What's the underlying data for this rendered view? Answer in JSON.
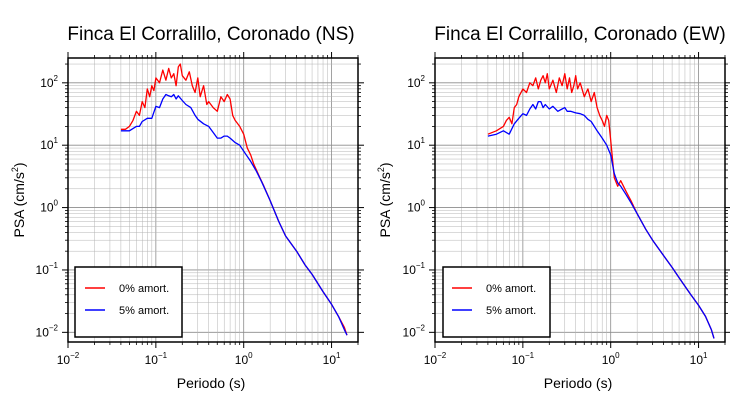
{
  "chart_data": [
    {
      "type": "line",
      "title": "Finca El Corralillo, Coronado (NS)",
      "xlabel": "Periodo (s)",
      "ylabel_main": "PSA (cm/s",
      "ylabel_sup": "2",
      "ylabel_close": ")",
      "xscale": "log",
      "yscale": "log",
      "xlim": [
        0.01,
        20
      ],
      "ylim": [
        0.007,
        250
      ],
      "grid": true,
      "legend_position": "bottom-left",
      "x_ticks": [
        {
          "value": 0.01,
          "base": "10",
          "exp": "−2"
        },
        {
          "value": 0.1,
          "base": "10",
          "exp": "−1"
        },
        {
          "value": 1,
          "base": "10",
          "exp": "0"
        },
        {
          "value": 10,
          "base": "10",
          "exp": "1"
        }
      ],
      "y_ticks": [
        {
          "value": 0.01,
          "base": "10",
          "exp": "−2"
        },
        {
          "value": 0.1,
          "base": "10",
          "exp": "−1"
        },
        {
          "value": 1,
          "base": "10",
          "exp": "0"
        },
        {
          "value": 10,
          "base": "10",
          "exp": "1"
        },
        {
          "value": 100,
          "base": "10",
          "exp": "2"
        }
      ],
      "series": [
        {
          "name": "0% amort.",
          "color": "#ff0000",
          "points": [
            [
              0.04,
              18
            ],
            [
              0.045,
              18
            ],
            [
              0.05,
              20
            ],
            [
              0.055,
              25
            ],
            [
              0.06,
              35
            ],
            [
              0.065,
              30
            ],
            [
              0.07,
              50
            ],
            [
              0.075,
              40
            ],
            [
              0.08,
              80
            ],
            [
              0.085,
              60
            ],
            [
              0.09,
              90
            ],
            [
              0.095,
              75
            ],
            [
              0.1,
              120
            ],
            [
              0.11,
              100
            ],
            [
              0.12,
              160
            ],
            [
              0.13,
              110
            ],
            [
              0.14,
              170
            ],
            [
              0.15,
              120
            ],
            [
              0.16,
              140
            ],
            [
              0.17,
              90
            ],
            [
              0.18,
              180
            ],
            [
              0.19,
              200
            ],
            [
              0.2,
              130
            ],
            [
              0.22,
              110
            ],
            [
              0.24,
              150
            ],
            [
              0.26,
              90
            ],
            [
              0.28,
              70
            ],
            [
              0.3,
              120
            ],
            [
              0.32,
              60
            ],
            [
              0.35,
              90
            ],
            [
              0.38,
              45
            ],
            [
              0.4,
              50
            ],
            [
              0.45,
              40
            ],
            [
              0.5,
              35
            ],
            [
              0.55,
              60
            ],
            [
              0.6,
              50
            ],
            [
              0.65,
              65
            ],
            [
              0.7,
              55
            ],
            [
              0.75,
              30
            ],
            [
              0.8,
              25
            ],
            [
              0.9,
              20
            ],
            [
              1.0,
              15
            ],
            [
              1.1,
              9
            ],
            [
              1.2,
              7
            ],
            [
              1.3,
              5
            ],
            [
              1.5,
              3.2
            ],
            [
              1.7,
              2.2
            ],
            [
              2.0,
              1.3
            ],
            [
              2.5,
              0.6
            ],
            [
              3.0,
              0.35
            ],
            [
              4.0,
              0.2
            ],
            [
              5.0,
              0.12
            ],
            [
              6.0,
              0.085
            ],
            [
              8.0,
              0.045
            ],
            [
              10.0,
              0.028
            ],
            [
              12.0,
              0.018
            ],
            [
              14.0,
              0.012
            ],
            [
              15.0,
              0.009
            ]
          ]
        },
        {
          "name": "5% amort.",
          "color": "#0000ff",
          "points": [
            [
              0.04,
              17
            ],
            [
              0.05,
              17
            ],
            [
              0.06,
              20
            ],
            [
              0.065,
              20
            ],
            [
              0.07,
              24
            ],
            [
              0.08,
              27
            ],
            [
              0.09,
              27
            ],
            [
              0.1,
              42
            ],
            [
              0.11,
              40
            ],
            [
              0.12,
              55
            ],
            [
              0.13,
              65
            ],
            [
              0.14,
              62
            ],
            [
              0.15,
              60
            ],
            [
              0.16,
              65
            ],
            [
              0.17,
              55
            ],
            [
              0.18,
              62
            ],
            [
              0.2,
              52
            ],
            [
              0.22,
              45
            ],
            [
              0.25,
              40
            ],
            [
              0.28,
              30
            ],
            [
              0.3,
              26
            ],
            [
              0.35,
              22
            ],
            [
              0.4,
              20
            ],
            [
              0.45,
              16
            ],
            [
              0.5,
              13
            ],
            [
              0.55,
              13
            ],
            [
              0.6,
              14
            ],
            [
              0.65,
              14
            ],
            [
              0.7,
              13
            ],
            [
              0.8,
              11
            ],
            [
              0.9,
              10
            ],
            [
              1.0,
              8
            ],
            [
              1.2,
              5.5
            ],
            [
              1.4,
              3.8
            ],
            [
              1.6,
              2.6
            ],
            [
              2.0,
              1.3
            ],
            [
              2.5,
              0.6
            ],
            [
              3.0,
              0.35
            ],
            [
              4.0,
              0.2
            ],
            [
              5.0,
              0.12
            ],
            [
              6.0,
              0.085
            ],
            [
              8.0,
              0.045
            ],
            [
              10.0,
              0.028
            ],
            [
              12.0,
              0.018
            ],
            [
              14.0,
              0.011
            ],
            [
              15.0,
              0.009
            ]
          ]
        }
      ]
    },
    {
      "type": "line",
      "title": "Finca El Corralillo, Coronado (EW)",
      "xlabel": "Periodo (s)",
      "ylabel_main": "PSA (cm/s",
      "ylabel_sup": "2",
      "ylabel_close": ")",
      "xscale": "log",
      "yscale": "log",
      "xlim": [
        0.01,
        20
      ],
      "ylim": [
        0.007,
        250
      ],
      "grid": true,
      "legend_position": "bottom-left",
      "x_ticks": [
        {
          "value": 0.01,
          "base": "10",
          "exp": "−2"
        },
        {
          "value": 0.1,
          "base": "10",
          "exp": "−1"
        },
        {
          "value": 1,
          "base": "10",
          "exp": "0"
        },
        {
          "value": 10,
          "base": "10",
          "exp": "1"
        }
      ],
      "y_ticks": [
        {
          "value": 0.01,
          "base": "10",
          "exp": "−2"
        },
        {
          "value": 0.1,
          "base": "10",
          "exp": "−1"
        },
        {
          "value": 1,
          "base": "10",
          "exp": "0"
        },
        {
          "value": 10,
          "base": "10",
          "exp": "1"
        },
        {
          "value": 100,
          "base": "10",
          "exp": "2"
        }
      ],
      "series": [
        {
          "name": "0% amort.",
          "color": "#ff0000",
          "points": [
            [
              0.04,
              15
            ],
            [
              0.05,
              17
            ],
            [
              0.06,
              20
            ],
            [
              0.065,
              25
            ],
            [
              0.07,
              28
            ],
            [
              0.075,
              22
            ],
            [
              0.08,
              40
            ],
            [
              0.085,
              45
            ],
            [
              0.09,
              60
            ],
            [
              0.1,
              80
            ],
            [
              0.11,
              70
            ],
            [
              0.12,
              100
            ],
            [
              0.13,
              90
            ],
            [
              0.14,
              120
            ],
            [
              0.15,
              80
            ],
            [
              0.16,
              110
            ],
            [
              0.17,
              130
            ],
            [
              0.18,
              100
            ],
            [
              0.19,
              140
            ],
            [
              0.2,
              80
            ],
            [
              0.22,
              110
            ],
            [
              0.24,
              70
            ],
            [
              0.26,
              120
            ],
            [
              0.28,
              90
            ],
            [
              0.3,
              140
            ],
            [
              0.32,
              80
            ],
            [
              0.34,
              120
            ],
            [
              0.36,
              70
            ],
            [
              0.38,
              90
            ],
            [
              0.4,
              130
            ],
            [
              0.42,
              80
            ],
            [
              0.45,
              100
            ],
            [
              0.5,
              60
            ],
            [
              0.55,
              80
            ],
            [
              0.6,
              50
            ],
            [
              0.65,
              70
            ],
            [
              0.7,
              40
            ],
            [
              0.75,
              30
            ],
            [
              0.8,
              25
            ],
            [
              0.85,
              20
            ],
            [
              0.9,
              30
            ],
            [
              0.95,
              25
            ],
            [
              1.0,
              12
            ],
            [
              1.1,
              3
            ],
            [
              1.2,
              2.2
            ],
            [
              1.3,
              2.7
            ],
            [
              1.5,
              1.8
            ],
            [
              1.7,
              1.3
            ],
            [
              2.0,
              0.8
            ],
            [
              2.5,
              0.45
            ],
            [
              3.0,
              0.3
            ],
            [
              4.0,
              0.17
            ],
            [
              5.0,
              0.11
            ],
            [
              6.0,
              0.075
            ],
            [
              8.0,
              0.042
            ],
            [
              10.0,
              0.027
            ],
            [
              12.0,
              0.018
            ],
            [
              14.0,
              0.011
            ],
            [
              15.0,
              0.008
            ]
          ]
        },
        {
          "name": "5% amort.",
          "color": "#0000ff",
          "points": [
            [
              0.04,
              14
            ],
            [
              0.05,
              15
            ],
            [
              0.06,
              17
            ],
            [
              0.07,
              15
            ],
            [
              0.08,
              22
            ],
            [
              0.09,
              27
            ],
            [
              0.1,
              32
            ],
            [
              0.11,
              30
            ],
            [
              0.12,
              38
            ],
            [
              0.13,
              45
            ],
            [
              0.14,
              38
            ],
            [
              0.15,
              50
            ],
            [
              0.16,
              50
            ],
            [
              0.17,
              40
            ],
            [
              0.18,
              45
            ],
            [
              0.2,
              38
            ],
            [
              0.22,
              42
            ],
            [
              0.25,
              35
            ],
            [
              0.28,
              38
            ],
            [
              0.3,
              40
            ],
            [
              0.32,
              35
            ],
            [
              0.35,
              35
            ],
            [
              0.4,
              33
            ],
            [
              0.45,
              32
            ],
            [
              0.5,
              30
            ],
            [
              0.55,
              26
            ],
            [
              0.6,
              24
            ],
            [
              0.65,
              20
            ],
            [
              0.7,
              17
            ],
            [
              0.8,
              13
            ],
            [
              0.9,
              10
            ],
            [
              1.0,
              7
            ],
            [
              1.1,
              3.5
            ],
            [
              1.2,
              2.5
            ],
            [
              1.3,
              2.2
            ],
            [
              1.5,
              1.6
            ],
            [
              1.7,
              1.2
            ],
            [
              2.0,
              0.8
            ],
            [
              2.5,
              0.45
            ],
            [
              3.0,
              0.3
            ],
            [
              4.0,
              0.17
            ],
            [
              5.0,
              0.11
            ],
            [
              6.0,
              0.075
            ],
            [
              8.0,
              0.042
            ],
            [
              10.0,
              0.027
            ],
            [
              12.0,
              0.018
            ],
            [
              14.0,
              0.011
            ],
            [
              15.0,
              0.008
            ]
          ]
        }
      ]
    }
  ]
}
